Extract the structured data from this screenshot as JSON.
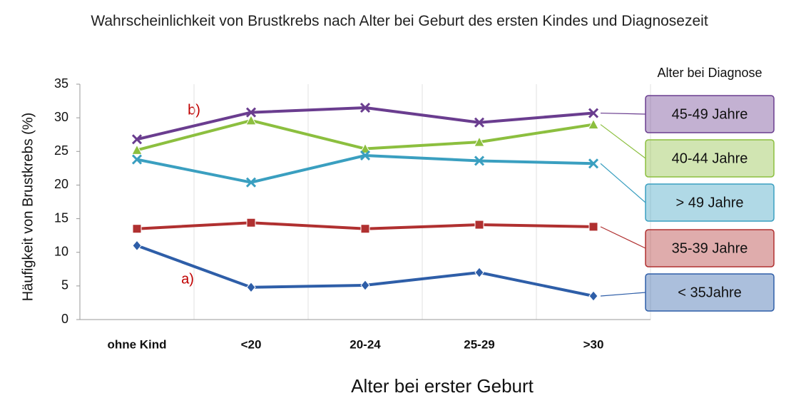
{
  "chart_data": {
    "type": "line",
    "title": "Wahrscheinlichkeit von Brustkrebs nach Alter bei Geburt des ersten Kindes und Diagnosezeit",
    "x_label": "Alter bei erster Geburt",
    "y_label": "Häufigkeit von Brustkrebs (%)",
    "legend_title": "Alter bei Diagnose",
    "legend_position": "right",
    "categories": [
      "ohne Kind",
      "<20",
      "20-24",
      "25-29",
      ">30"
    ],
    "ylim": [
      0,
      35
    ],
    "yticks": [
      0,
      5,
      10,
      15,
      20,
      25,
      30,
      35
    ],
    "annotations": [
      "b)",
      "a)"
    ],
    "series": [
      {
        "name": "45-49 Jahre",
        "color": "#6a3d8f",
        "marker": "x",
        "values": [
          26.8,
          30.8,
          31.5,
          29.3,
          30.7
        ]
      },
      {
        "name": "40-44 Jahre",
        "color": "#8cbf3f",
        "marker": "triangle",
        "values": [
          25.2,
          29.6,
          25.4,
          26.4,
          29.0
        ]
      },
      {
        "name": "> 49 Jahre",
        "color": "#3a9fc0",
        "marker": "x",
        "values": [
          23.8,
          20.4,
          24.4,
          23.6,
          23.2
        ]
      },
      {
        "name": "35-39 Jahre",
        "color": "#b03030",
        "marker": "square",
        "values": [
          13.5,
          14.4,
          13.5,
          14.1,
          13.8
        ]
      },
      {
        "name": "< 35Jahre",
        "color": "#2e5ea8",
        "marker": "diamond",
        "values": [
          11.0,
          4.8,
          5.1,
          7.0,
          3.5
        ]
      }
    ]
  }
}
